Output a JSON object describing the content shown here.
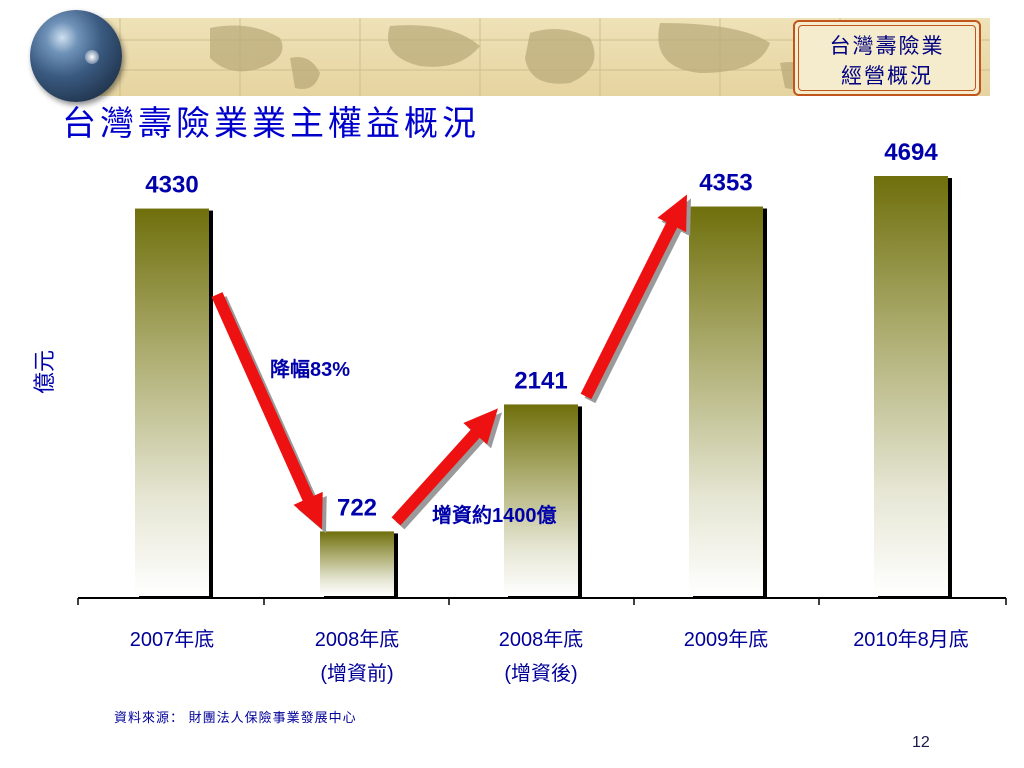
{
  "header": {
    "badge_line1": "台灣壽險業",
    "badge_line2": "經營概況",
    "title": "台灣壽險業業主權益概況"
  },
  "chart_data": {
    "type": "bar",
    "title": "台灣壽險業業主權益概況",
    "ylabel": "億元",
    "xlabel": "",
    "categories": [
      "2007年底",
      "2008年底\n(增資前)",
      "2008年底\n(增資後)",
      "2009年底",
      "2010年8月底"
    ],
    "values": [
      4330,
      722,
      2141,
      4353,
      4694
    ],
    "value_labels": [
      "4330",
      "722",
      "2141",
      "4353",
      "4694"
    ],
    "ylim": [
      0,
      4694
    ],
    "grid": false,
    "legend": "none",
    "annotations": [
      {
        "text": "降幅83%",
        "arrow": "down",
        "from_category": 0,
        "to_category": 1
      },
      {
        "text": "增資約1400億",
        "arrow": "up",
        "from_category": 1,
        "to_category": 2
      },
      {
        "text": "",
        "arrow": "up",
        "from_category": 2,
        "to_category": 3
      }
    ]
  },
  "colors": {
    "bar_top": "#7a7a10",
    "bar_bottom": "#ffffff",
    "arrow": "#ee1111",
    "label": "#0000aa",
    "title": "#0000cc"
  },
  "footer": {
    "source": "資料來源： 財團法人保險事業發展中心",
    "page": "12"
  }
}
